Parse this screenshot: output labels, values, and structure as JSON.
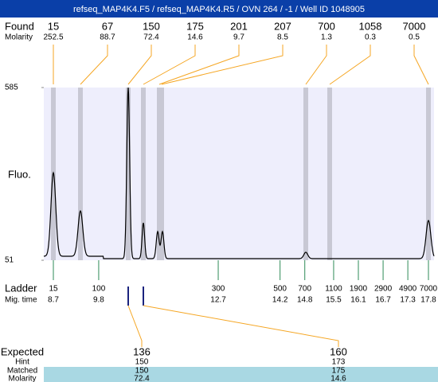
{
  "title": "refseq_MAP4K4.F5 / refseq_MAP4K4.R5 / OVN 264 / -1 / Well ID 1048905",
  "found": {
    "label": "Found",
    "molarity_label": "Molarity",
    "sizes": [
      15,
      67,
      150,
      175,
      201,
      207,
      700,
      1058,
      7000
    ],
    "molarity": [
      252.5,
      88.7,
      72.4,
      14.6,
      9.7,
      8.5,
      1.3,
      0.3,
      0.5
    ]
  },
  "axis": {
    "label": "Fluo.",
    "ylim": [
      51,
      585
    ],
    "yticks": [
      51,
      585
    ]
  },
  "ladder": {
    "label": "Ladder",
    "mig_label": "Mig. time",
    "sizes": [
      15,
      100,
      300,
      500,
      700,
      1100,
      1900,
      2900,
      4900,
      7000
    ],
    "mig_times": [
      8.7,
      9.8,
      12.7,
      14.2,
      14.8,
      15.5,
      16.1,
      16.7,
      17.3,
      17.8
    ]
  },
  "expected": {
    "labels": [
      "Expected",
      "Hint",
      "Matched",
      "Molarity"
    ],
    "columns": [
      {
        "expected": 136,
        "hint": 150,
        "matched": 150,
        "molarity": 72.4
      },
      {
        "expected": 160,
        "hint": 173,
        "matched": 175,
        "molarity": 14.6
      }
    ]
  }
}
